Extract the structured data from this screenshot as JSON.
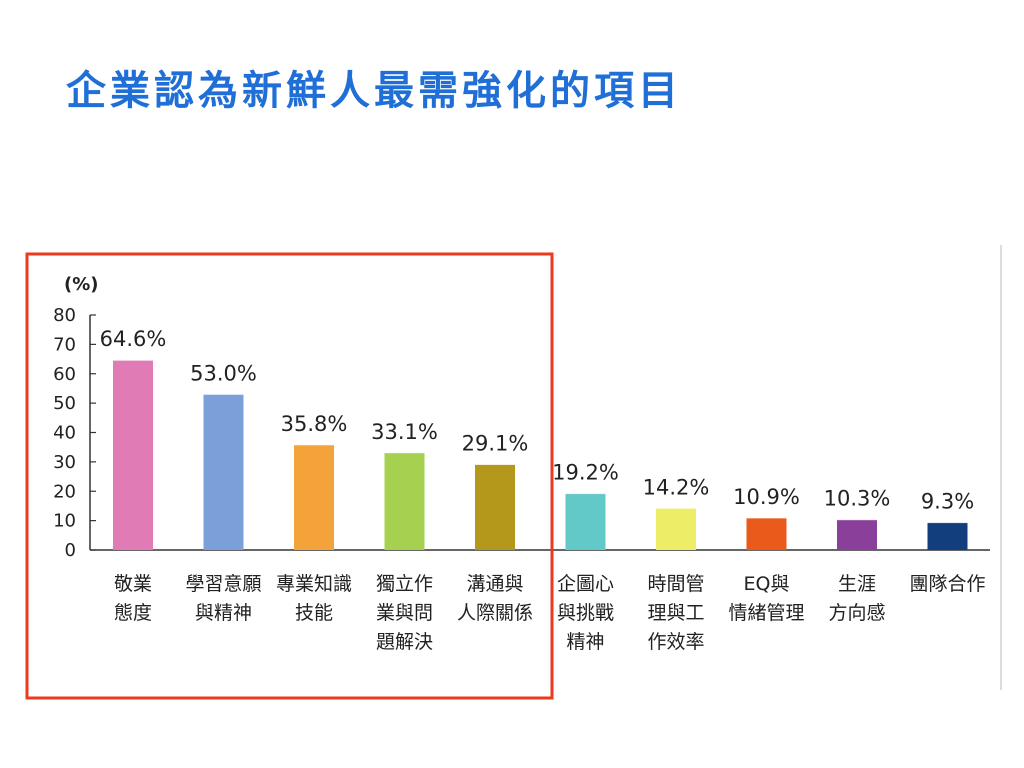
{
  "slide": {
    "title": "企業認為新鮮人最需強化的項目"
  },
  "highlight_color": "#ee3a1c",
  "chart_data": {
    "type": "bar",
    "unit_label": "(%)",
    "ylim": [
      0,
      80
    ],
    "yticks": [
      0,
      10,
      20,
      30,
      40,
      50,
      60,
      70,
      80
    ],
    "grid": false,
    "categories": [
      [
        "敬業",
        "態度"
      ],
      [
        "學習意願",
        "與精神"
      ],
      [
        "專業知識",
        "技能"
      ],
      [
        "獨立作",
        "業與問",
        "題解決"
      ],
      [
        "溝通與",
        "人際關係"
      ],
      [
        "企圖心",
        "與挑戰",
        "精神"
      ],
      [
        "時間管",
        "理與工",
        "作效率"
      ],
      [
        "EQ與",
        "情緒管理"
      ],
      [
        "生涯",
        "方向感"
      ],
      [
        "團隊合作"
      ]
    ],
    "values": [
      64.6,
      53.0,
      35.8,
      33.1,
      29.1,
      19.2,
      14.2,
      10.9,
      10.3,
      9.3
    ],
    "value_labels": [
      "64.6%",
      "53.0%",
      "35.8%",
      "33.1%",
      "29.1%",
      "19.2%",
      "14.2%",
      "10.9%",
      "10.3%",
      "9.3%"
    ],
    "colors": [
      "#e07bb5",
      "#7b9fd8",
      "#f4a23a",
      "#a6d04f",
      "#b4981c",
      "#62c8c8",
      "#eeee66",
      "#ea5a1a",
      "#8a3f9a",
      "#123e7e"
    ],
    "highlighted_count": 5
  }
}
